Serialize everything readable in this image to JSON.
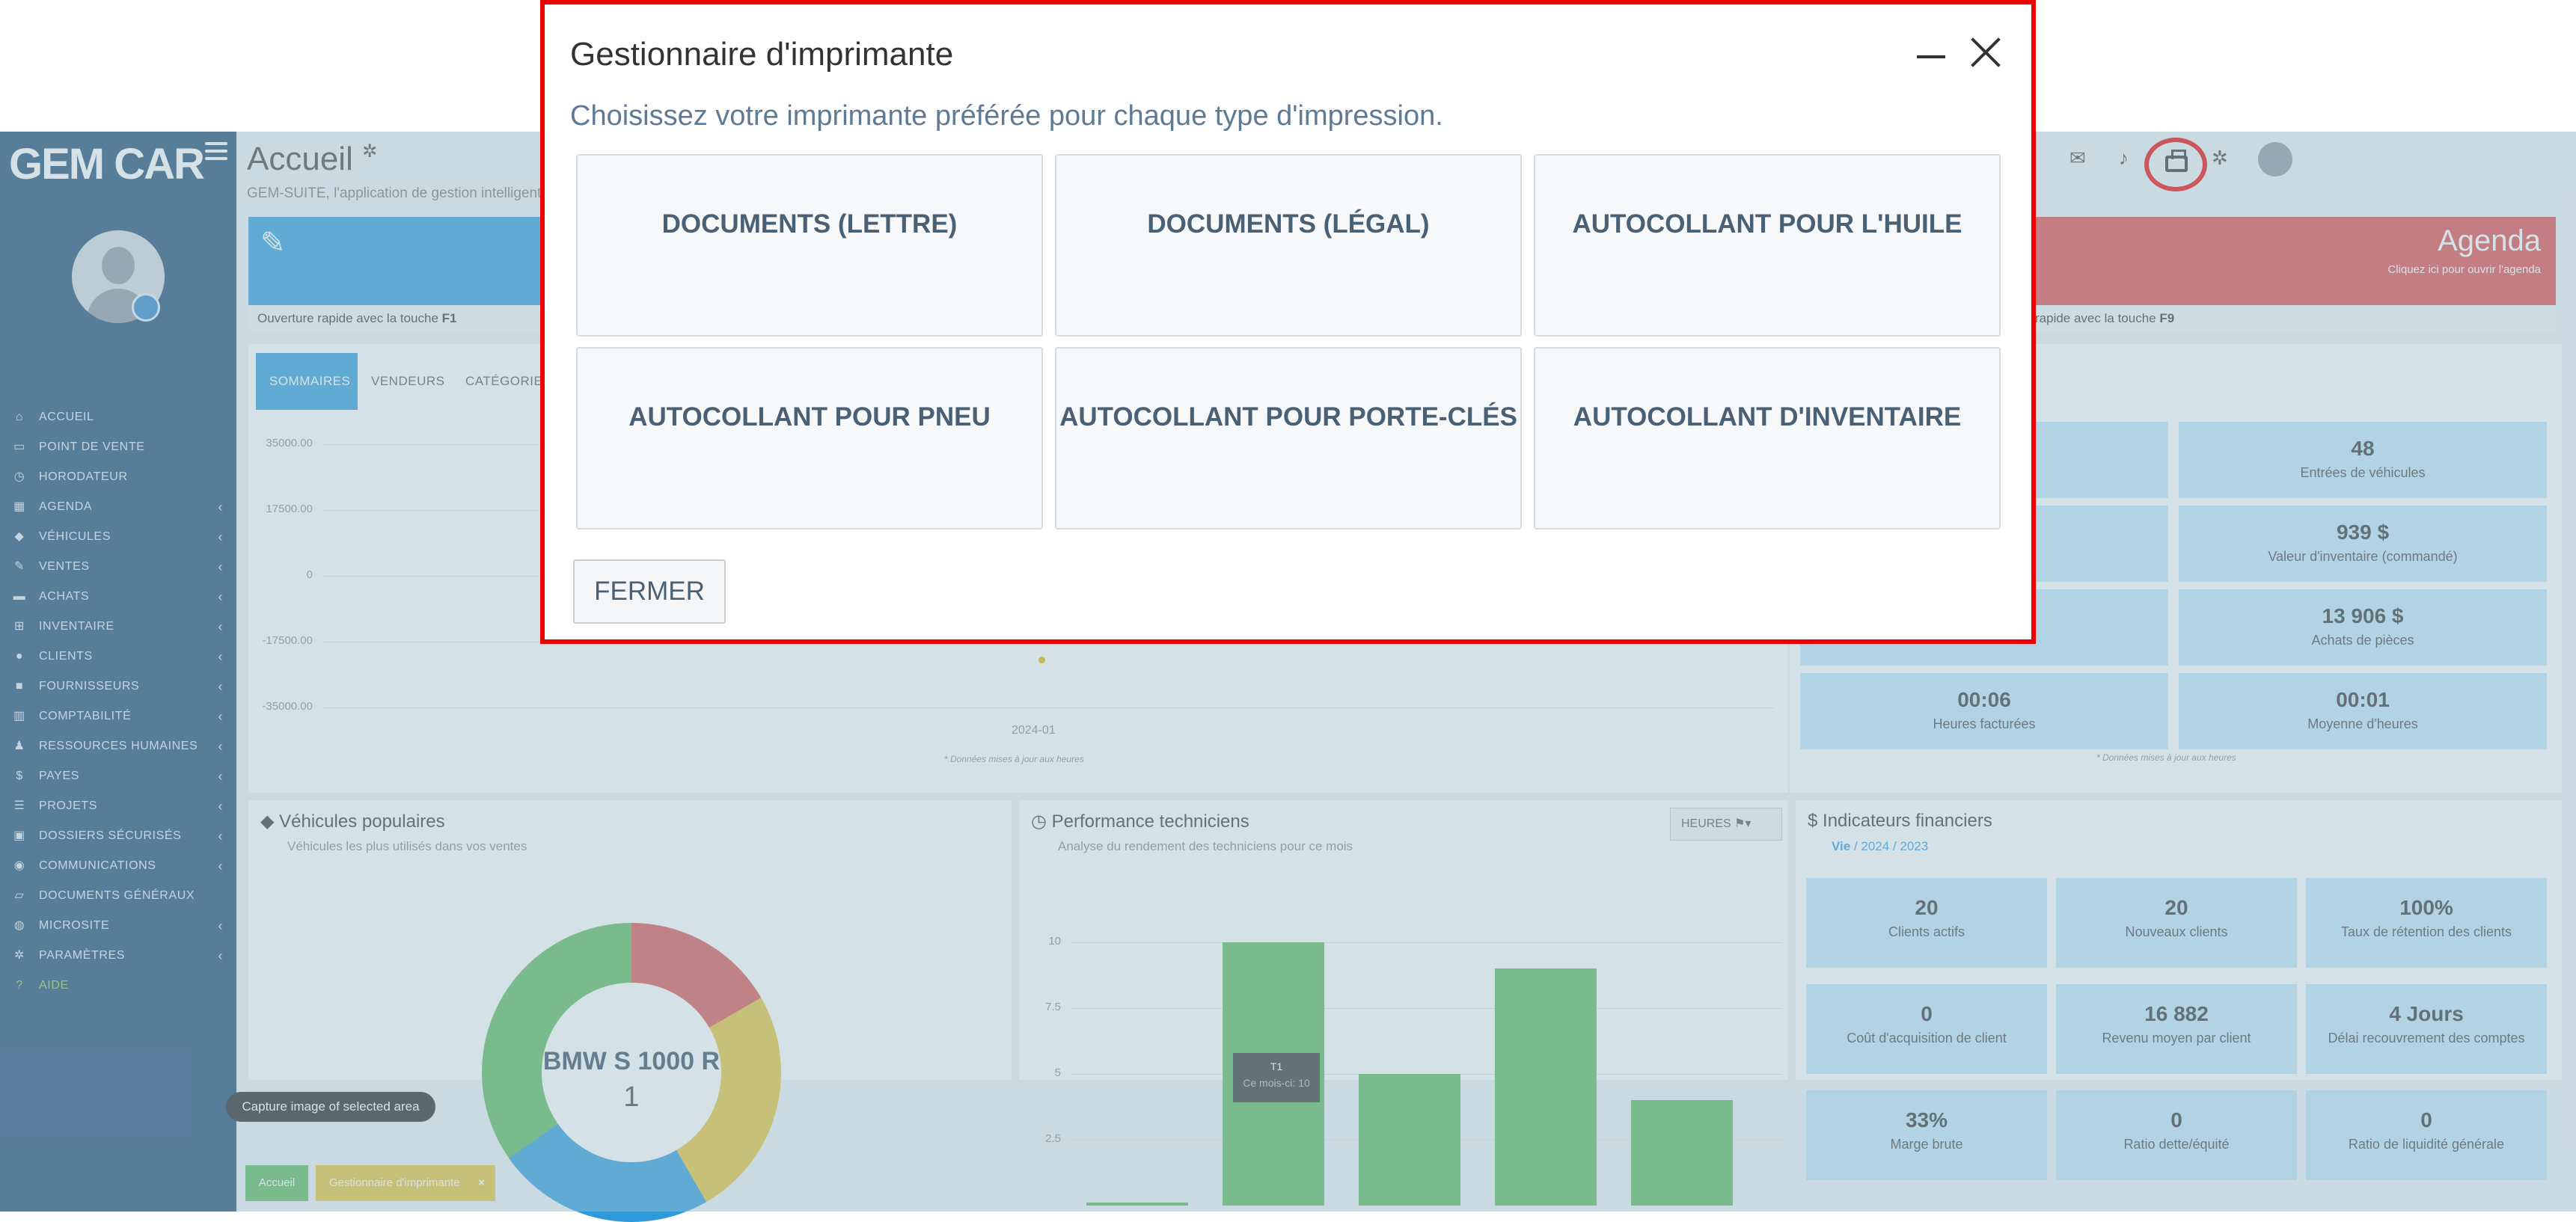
{
  "sidebar": {
    "logo": "GEM CAR",
    "logo_sub": "",
    "items": [
      {
        "icon": "home-icon",
        "glyph": "⌂",
        "label": "ACCUEIL",
        "chevron": false
      },
      {
        "icon": "cash-register-icon",
        "glyph": "▭",
        "label": "POINT DE VENTE",
        "chevron": false
      },
      {
        "icon": "clock-icon",
        "glyph": "◷",
        "label": "HORODATEUR",
        "chevron": false
      },
      {
        "icon": "calendar-icon",
        "glyph": "▦",
        "label": "AGENDA",
        "chevron": true
      },
      {
        "icon": "car-icon",
        "glyph": "◆",
        "label": "VÉHICULES",
        "chevron": true
      },
      {
        "icon": "edit-icon",
        "glyph": "✎",
        "label": "VENTES",
        "chevron": true
      },
      {
        "icon": "credit-card-icon",
        "glyph": "▬",
        "label": "ACHATS",
        "chevron": true
      },
      {
        "icon": "cart-icon",
        "glyph": "⊞",
        "label": "INVENTAIRE",
        "chevron": true
      },
      {
        "icon": "users-icon",
        "glyph": "●",
        "label": "CLIENTS",
        "chevron": true
      },
      {
        "icon": "truck-icon",
        "glyph": "■",
        "label": "FOURNISSEURS",
        "chevron": true
      },
      {
        "icon": "chart-icon",
        "glyph": "▥",
        "label": "COMPTABILITÉ",
        "chevron": true
      },
      {
        "icon": "person-icon",
        "glyph": "♟",
        "label": "RESSOURCES HUMAINES",
        "chevron": true
      },
      {
        "icon": "dollar-icon",
        "glyph": "$",
        "label": "PAYES",
        "chevron": true
      },
      {
        "icon": "list-icon",
        "glyph": "☰",
        "label": "PROJETS",
        "chevron": true
      },
      {
        "icon": "lock-icon",
        "glyph": "▣",
        "label": "DOSSIERS SÉCURISÉS",
        "chevron": true
      },
      {
        "icon": "comments-icon",
        "glyph": "◉",
        "label": "COMMUNICATIONS",
        "chevron": true
      },
      {
        "icon": "folder-icon",
        "glyph": "▱",
        "label": "DOCUMENTS GÉNÉRAUX",
        "chevron": false
      },
      {
        "icon": "globe-icon",
        "glyph": "◍",
        "label": "MICROSITE",
        "chevron": true
      },
      {
        "icon": "gear-icon",
        "glyph": "✲",
        "label": "PARAMÈTRES",
        "chevron": true
      },
      {
        "icon": "help-icon",
        "glyph": "?",
        "label": "AIDE",
        "chevron": false
      }
    ],
    "chevron_glyph": "‹"
  },
  "header": {
    "title": "Accueil",
    "subtitle": "GEM-SUITE, l'application de gestion intelligente"
  },
  "tiles": {
    "blue_footer_text": "Ouverture rapide avec la touche ",
    "blue_footer_key": "F1",
    "red_title": "Agenda",
    "red_sub": "Cliquez ici pour ouvrir l'agenda",
    "red_footer_text": "rapide avec la touche ",
    "red_footer_key": "F9"
  },
  "summary": {
    "tabs": [
      "SOMMAIRES",
      "VENDEURS",
      "CATÉGORIE"
    ],
    "yticks": [
      "35000.00",
      "17500.00",
      "0",
      "-17500.00",
      "-35000.00"
    ],
    "xtick": "2024-01",
    "note": "* Données mises à jour aux heures"
  },
  "stats": {
    "items": [
      {
        "value": "",
        "label": "e"
      },
      {
        "value": "48",
        "label": "Entrées de véhicules"
      },
      {
        "value": "$",
        "label": "re"
      },
      {
        "value": "939 $",
        "label": "Valeur d'inventaire (commandé)"
      },
      {
        "value": "",
        "label": "rvée)"
      },
      {
        "value": "13 906 $",
        "label": "Achats de pièces"
      },
      {
        "value": "00:06",
        "label": "Heures facturées"
      },
      {
        "value": "00:01",
        "label": "Moyenne d'heures"
      }
    ],
    "note": "* Données mises à jour aux heures"
  },
  "popular": {
    "title": "Véhicules populaires",
    "subtitle": "Véhicules les plus utilisés dans vos ventes",
    "center_label": "BMW S 1000 R",
    "center_value": "1"
  },
  "techs": {
    "title": "Performance techniciens",
    "subtitle": "Analyse du rendement des techniciens pour ce mois",
    "button": "HEURES",
    "yticks": [
      "10",
      "7.5",
      "5",
      "2.5"
    ],
    "bars": [
      0.1,
      10,
      5,
      9,
      4
    ],
    "ymax": 10,
    "tooltip_title": "T1",
    "tooltip_text": "Ce mois-ci: 10"
  },
  "finance": {
    "title": "Indicateurs financiers",
    "link_active": "Vie",
    "link_sep": " / ",
    "link_2024": "2024",
    "link_2023": "2023",
    "items": [
      {
        "value": "20",
        "label": "Clients actifs"
      },
      {
        "value": "20",
        "label": "Nouveaux clients"
      },
      {
        "value": "100%",
        "label": "Taux de rétention des clients"
      },
      {
        "value": "0",
        "label": "Coût d'acquisition de client"
      },
      {
        "value": "16 882",
        "label": "Revenu moyen par client"
      },
      {
        "value": "4 Jours",
        "label": "Délai recouvrement des comptes"
      },
      {
        "value": "33%",
        "label": "Marge brute"
      },
      {
        "value": "0",
        "label": "Ratio dette/équité"
      },
      {
        "value": "0",
        "label": "Ratio de liquidité générale"
      }
    ]
  },
  "footer_tabs": {
    "home": "Accueil",
    "printer": "Gestionnaire d'imprimante",
    "close_glyph": "×"
  },
  "capture_tip": "Capture image of selected area",
  "modal": {
    "title": "Gestionnaire d'imprimante",
    "subtitle": "Choisissez votre imprimante préférée pour chaque type d'impression.",
    "buttons": [
      "DOCUMENTS (LETTRE)",
      "DOCUMENTS (LÉGAL)",
      "AUTOCOLLANT POUR L'HUILE",
      "AUTOCOLLANT POUR PNEU",
      "AUTOCOLLANT POUR PORTE-CLÉS",
      "AUTOCOLLANT D'INVENTAIRE"
    ],
    "close_button": "FERMER"
  },
  "colors": {
    "sidebar": "#1e4870",
    "accent_blue": "#2f9ad9",
    "accent_red": "#e04848",
    "modal_border": "#e00000",
    "bar_green": "#5cb85c"
  }
}
